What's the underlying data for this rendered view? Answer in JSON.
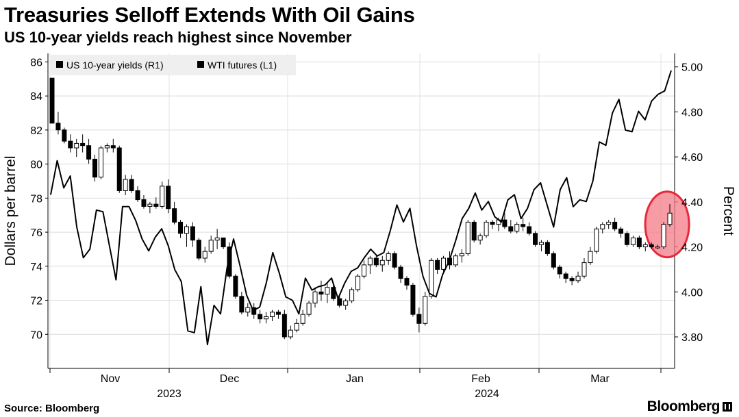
{
  "header": {
    "title": "Treasuries Selloff Extends With Oil Gains",
    "subtitle": "US 10-year yields reach highest since November"
  },
  "footer": {
    "source": "Source: Bloomberg",
    "brand": "Bloomberg"
  },
  "chart_data": {
    "type": "line",
    "title": "Treasuries Selloff Extends With Oil Gains",
    "subtitle": "US 10-year yields reach highest since November",
    "ylabel_left": "Dollars per barrel",
    "ylabel_right": "Percent",
    "y_left_range": [
      68,
      86.5
    ],
    "y_left_ticks": [
      "86",
      "84",
      "82",
      "80",
      "78",
      "76",
      "74",
      "72",
      "70"
    ],
    "y_right_range": [
      3.66,
      5.06
    ],
    "y_right_ticks": [
      "5.00",
      "4.80",
      "4.60",
      "4.40",
      "4.20",
      "4.00",
      "3.80"
    ],
    "x_month_labels": [
      "Nov",
      "Dec",
      "Jan",
      "Feb",
      "Mar"
    ],
    "x_year_labels": [
      "2023",
      "2024"
    ],
    "legend_position": "top-left",
    "highlight": {
      "description": "last sessions of yields",
      "color": "#f47a85"
    },
    "series": [
      {
        "name": "US 10-year yields (R1)",
        "axis": "right",
        "style": "candlestick",
        "candles": [
          [
            4.95,
            4.93,
            4.75,
            4.75
          ],
          [
            4.75,
            4.8,
            4.7,
            4.72
          ],
          [
            4.72,
            4.73,
            4.66,
            4.67
          ],
          [
            4.67,
            4.7,
            4.62,
            4.64
          ],
          [
            4.64,
            4.68,
            4.6,
            4.66
          ],
          [
            4.66,
            4.7,
            4.62,
            4.65
          ],
          [
            4.65,
            4.68,
            4.57,
            4.59
          ],
          [
            4.59,
            4.61,
            4.49,
            4.51
          ],
          [
            4.51,
            4.65,
            4.5,
            4.64
          ],
          [
            4.64,
            4.66,
            4.62,
            4.65
          ],
          [
            4.65,
            4.68,
            4.62,
            4.64
          ],
          [
            4.64,
            4.65,
            4.44,
            4.45
          ],
          [
            4.45,
            4.52,
            4.43,
            4.5
          ],
          [
            4.5,
            4.52,
            4.44,
            4.45
          ],
          [
            4.45,
            4.47,
            4.4,
            4.41
          ],
          [
            4.41,
            4.43,
            4.37,
            4.38
          ],
          [
            4.38,
            4.4,
            4.35,
            4.39
          ],
          [
            4.39,
            4.42,
            4.37,
            4.38
          ],
          [
            4.38,
            4.49,
            4.37,
            4.47
          ],
          [
            4.47,
            4.5,
            4.35,
            4.37
          ],
          [
            4.37,
            4.4,
            4.3,
            4.31
          ],
          [
            4.31,
            4.32,
            4.24,
            4.26
          ],
          [
            4.26,
            4.3,
            4.2,
            4.29
          ],
          [
            4.29,
            4.31,
            4.2,
            4.23
          ],
          [
            4.23,
            4.24,
            4.14,
            4.15
          ],
          [
            4.15,
            4.2,
            4.13,
            4.18
          ],
          [
            4.18,
            4.25,
            4.17,
            4.23
          ],
          [
            4.23,
            4.28,
            4.19,
            4.24
          ],
          [
            4.24,
            4.23,
            4.19,
            4.2
          ],
          [
            4.2,
            4.22,
            4.06,
            4.07
          ],
          [
            4.07,
            4.08,
            3.97,
            3.98
          ],
          [
            3.98,
            4.0,
            3.9,
            3.91
          ],
          [
            3.91,
            3.95,
            3.89,
            3.93
          ],
          [
            3.93,
            3.95,
            3.88,
            3.9
          ],
          [
            3.9,
            3.92,
            3.86,
            3.88
          ],
          [
            3.88,
            3.91,
            3.86,
            3.89
          ],
          [
            3.89,
            3.92,
            3.87,
            3.91
          ],
          [
            3.91,
            3.92,
            3.88,
            3.9
          ],
          [
            3.9,
            3.92,
            3.79,
            3.8
          ],
          [
            3.8,
            3.85,
            3.79,
            3.83
          ],
          [
            3.83,
            3.88,
            3.82,
            3.86
          ],
          [
            3.86,
            3.92,
            3.85,
            3.9
          ],
          [
            3.9,
            3.96,
            3.89,
            3.95
          ],
          [
            3.95,
            4.02,
            3.93,
            4.0
          ],
          [
            4.0,
            4.05,
            3.96,
            3.99
          ],
          [
            3.99,
            4.04,
            3.95,
            4.02
          ],
          [
            4.02,
            4.04,
            3.96,
            3.97
          ],
          [
            3.97,
            3.99,
            3.93,
            3.94
          ],
          [
            3.94,
            3.97,
            3.92,
            3.96
          ],
          [
            3.96,
            4.02,
            3.95,
            4.01
          ],
          [
            4.01,
            4.08,
            4.0,
            4.07
          ],
          [
            4.07,
            4.14,
            4.06,
            4.12
          ],
          [
            4.12,
            4.16,
            4.08,
            4.15
          ],
          [
            4.15,
            4.16,
            4.11,
            4.12
          ],
          [
            4.12,
            4.16,
            4.09,
            4.14
          ],
          [
            4.14,
            4.18,
            4.12,
            4.17
          ],
          [
            4.17,
            4.18,
            4.1,
            4.11
          ],
          [
            4.11,
            4.12,
            4.04,
            4.06
          ],
          [
            4.06,
            4.07,
            4.01,
            4.03
          ],
          [
            4.03,
            4.04,
            3.89,
            3.9
          ],
          [
            3.9,
            3.93,
            3.82,
            3.86
          ],
          [
            3.86,
            4.0,
            3.85,
            3.98
          ],
          [
            3.98,
            4.15,
            3.97,
            4.14
          ],
          [
            4.14,
            4.15,
            4.08,
            4.1
          ],
          [
            4.1,
            4.16,
            4.08,
            4.15
          ],
          [
            4.15,
            4.18,
            4.1,
            4.12
          ],
          [
            4.12,
            4.17,
            4.11,
            4.16
          ],
          [
            4.16,
            4.19,
            4.13,
            4.17
          ],
          [
            4.17,
            4.32,
            4.16,
            4.31
          ],
          [
            4.31,
            4.32,
            4.22,
            4.23
          ],
          [
            4.23,
            4.26,
            4.21,
            4.25
          ],
          [
            4.25,
            4.32,
            4.24,
            4.31
          ],
          [
            4.31,
            4.32,
            4.28,
            4.3
          ],
          [
            4.3,
            4.33,
            4.27,
            4.32
          ],
          [
            4.32,
            4.35,
            4.28,
            4.29
          ],
          [
            4.29,
            4.32,
            4.26,
            4.27
          ],
          [
            4.27,
            4.31,
            4.26,
            4.3
          ],
          [
            4.3,
            4.33,
            4.27,
            4.29
          ],
          [
            4.29,
            4.31,
            4.25,
            4.26
          ],
          [
            4.26,
            4.27,
            4.2,
            4.21
          ],
          [
            4.21,
            4.23,
            4.18,
            4.22
          ],
          [
            4.22,
            4.23,
            4.16,
            4.17
          ],
          [
            4.17,
            4.18,
            4.1,
            4.11
          ],
          [
            4.11,
            4.12,
            4.06,
            4.08
          ],
          [
            4.08,
            4.09,
            4.04,
            4.06
          ],
          [
            4.06,
            4.07,
            4.03,
            4.05
          ],
          [
            4.05,
            4.09,
            4.04,
            4.07
          ],
          [
            4.07,
            4.15,
            4.06,
            4.13
          ],
          [
            4.13,
            4.2,
            4.12,
            4.18
          ],
          [
            4.18,
            4.29,
            4.17,
            4.28
          ],
          [
            4.28,
            4.31,
            4.26,
            4.3
          ],
          [
            4.3,
            4.32,
            4.28,
            4.31
          ],
          [
            4.31,
            4.33,
            4.27,
            4.28
          ],
          [
            4.28,
            4.29,
            4.24,
            4.26
          ],
          [
            4.26,
            4.27,
            4.2,
            4.21
          ],
          [
            4.21,
            4.25,
            4.2,
            4.24
          ],
          [
            4.24,
            4.25,
            4.19,
            4.2
          ],
          [
            4.2,
            4.22,
            4.18,
            4.21
          ],
          [
            4.21,
            4.22,
            4.19,
            4.2
          ],
          [
            4.2,
            4.21,
            4.19,
            4.2
          ],
          [
            4.2,
            4.31,
            4.19,
            4.3
          ],
          [
            4.3,
            4.39,
            4.29,
            4.35
          ]
        ]
      },
      {
        "name": "WTI futures (L1)",
        "axis": "left",
        "style": "line",
        "values": [
          78.2,
          80.2,
          78.6,
          79.3,
          76.3,
          74.5,
          75.0,
          77.3,
          77.2,
          75.2,
          73.2,
          77.5,
          77.5,
          76.7,
          75.6,
          74.9,
          75.7,
          76.2,
          75.2,
          73.8,
          73.1,
          70.2,
          70.1,
          72.8,
          69.4,
          71.7,
          71.2,
          73.9,
          75.6,
          74.0,
          72.3,
          71.4,
          71.6,
          73.0,
          74.8,
          73.6,
          72.2,
          72.0,
          71.2,
          73.3,
          72.6,
          72.8,
          72.9,
          73.3,
          72.1,
          73.0,
          73.7,
          73.9,
          74.5,
          75.0,
          74.6,
          74.8,
          76.1,
          77.6,
          76.6,
          77.4,
          75.2,
          73.4,
          72.4,
          72.2,
          73.5,
          74.3,
          75.5,
          76.8,
          77.4,
          78.3,
          77.3,
          77.8,
          76.9,
          76.6,
          77.9,
          78.2,
          76.8,
          77.4,
          78.5,
          78.9,
          77.6,
          76.3,
          78.5,
          79.2,
          77.5,
          77.9,
          77.8,
          79.0,
          81.3,
          81.1,
          83.0,
          83.8,
          82.0,
          81.9,
          83.1,
          82.6,
          83.7,
          84.1,
          84.3,
          85.5
        ]
      }
    ],
    "legend": [
      {
        "label": "US 10-year yields (R1)",
        "color": "#000000"
      },
      {
        "label": "WTI futures (L1)",
        "color": "#000000"
      }
    ]
  }
}
